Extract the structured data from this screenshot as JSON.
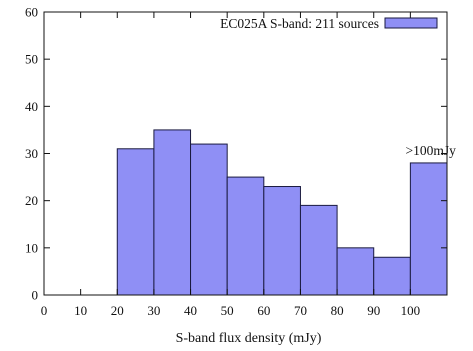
{
  "chart_data": {
    "type": "bar",
    "title": "",
    "xlabel": "S-band flux density (mJy)",
    "ylabel": "",
    "xlim": [
      0,
      110
    ],
    "ylim": [
      0,
      60
    ],
    "xticks": [
      0,
      10,
      20,
      30,
      40,
      50,
      60,
      70,
      80,
      90,
      100
    ],
    "yticks": [
      0,
      10,
      20,
      30,
      40,
      50,
      60
    ],
    "bin_width": 10,
    "series": [
      {
        "name": "EC025A S-band: 211 sources",
        "color": "#8f8ff5",
        "edge_color": "#1a1a40",
        "bins": [
          {
            "x_start": 20,
            "x_end": 30,
            "value": 31
          },
          {
            "x_start": 30,
            "x_end": 40,
            "value": 35
          },
          {
            "x_start": 40,
            "x_end": 50,
            "value": 32
          },
          {
            "x_start": 50,
            "x_end": 60,
            "value": 25
          },
          {
            "x_start": 60,
            "x_end": 70,
            "value": 23
          },
          {
            "x_start": 70,
            "x_end": 80,
            "value": 19
          },
          {
            "x_start": 80,
            "x_end": 90,
            "value": 10
          },
          {
            "x_start": 90,
            "x_end": 100,
            "value": 8
          },
          {
            "x_start": 100,
            "x_end": 110,
            "value": 28
          }
        ]
      }
    ],
    "legend": {
      "position": "top-right",
      "label": "EC025A S-band: 211 sources"
    },
    "annotations": [
      {
        "text": ">100mJy",
        "x": 105,
        "y": 31
      }
    ],
    "grid": false
  }
}
